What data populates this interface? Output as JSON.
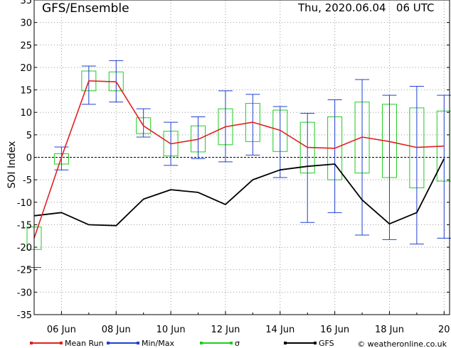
{
  "header": {
    "title": "GFS/Ensemble",
    "datetime": "Thu, 2020.06.04   06 UTC"
  },
  "footer": {
    "credit": "© weatheronline.co.uk"
  },
  "colors": {
    "mean": "#e02020",
    "minmax": "#2040d0",
    "sigma": "#20cc20",
    "gfs": "#000000",
    "grid": "#999999"
  },
  "chart_data": {
    "type": "line",
    "ylabel": "SOI Index",
    "ylim": [
      -35,
      35
    ],
    "yticks": [
      -35,
      -30,
      -25,
      -20,
      -15,
      -10,
      -5,
      0,
      5,
      10,
      15,
      20,
      25,
      30,
      35
    ],
    "xlim": [
      5.0,
      20.2
    ],
    "xticks": [
      {
        "day": 6,
        "label": "06  Jun"
      },
      {
        "day": 8,
        "label": "08  Jun"
      },
      {
        "day": 10,
        "label": "10  Jun"
      },
      {
        "day": 12,
        "label": "12  Jun"
      },
      {
        "day": 14,
        "label": "14  Jun"
      },
      {
        "day": 16,
        "label": "16  Jun"
      },
      {
        "day": 18,
        "label": "18  Jun"
      },
      {
        "day": 20,
        "label": "20"
      }
    ],
    "legend": {
      "position": "bottom",
      "entries": [
        {
          "key": "mean",
          "label": "Mean Run"
        },
        {
          "key": "minmax",
          "label": "Min/Max"
        },
        {
          "key": "sigma",
          "label": "σ"
        },
        {
          "key": "gfs",
          "label": "GFS"
        }
      ]
    },
    "x": [
      5,
      6,
      7,
      8,
      9,
      10,
      11,
      12,
      13,
      14,
      15,
      16,
      17,
      18,
      19,
      20
    ],
    "series": [
      {
        "name": "Mean Run",
        "key": "mean",
        "values": [
          -18,
          0,
          17,
          16.8,
          7,
          3,
          4,
          6.8,
          7.8,
          6,
          2.2,
          2,
          4.5,
          3.5,
          2.2,
          2.5
        ]
      },
      {
        "name": "GFS",
        "key": "gfs",
        "values": [
          -13,
          -12.3,
          -15,
          -15.2,
          -9.3,
          -7.2,
          -7.8,
          -10.5,
          -5,
          -2.8,
          -2,
          -1.5,
          -9.5,
          -14.8,
          -12.3,
          -0.3
        ]
      }
    ],
    "minmax": [
      {
        "x": 5,
        "min": -24.5,
        "max": -24.5
      },
      {
        "x": 6,
        "min": -2.8,
        "max": 2.3
      },
      {
        "x": 7,
        "min": 11.8,
        "max": 20.3
      },
      {
        "x": 8,
        "min": 12.3,
        "max": 21.5
      },
      {
        "x": 9,
        "min": 4.5,
        "max": 10.8
      },
      {
        "x": 10,
        "min": -1.8,
        "max": 7.8
      },
      {
        "x": 11,
        "min": -0.3,
        "max": 9.0
      },
      {
        "x": 12,
        "min": -1.0,
        "max": 14.8
      },
      {
        "x": 13,
        "min": 0.5,
        "max": 14.0
      },
      {
        "x": 14,
        "min": -4.5,
        "max": 11.3
      },
      {
        "x": 15,
        "min": -14.5,
        "max": 9.8
      },
      {
        "x": 16,
        "min": -12.3,
        "max": 12.8
      },
      {
        "x": 17,
        "min": -17.3,
        "max": 17.3
      },
      {
        "x": 18,
        "min": -18.3,
        "max": 13.8
      },
      {
        "x": 19,
        "min": -19.3,
        "max": 15.8
      },
      {
        "x": 20,
        "min": -18.0,
        "max": 13.8
      }
    ],
    "sigma": [
      {
        "x": 5,
        "low": -20.5,
        "high": -15.5
      },
      {
        "x": 6,
        "low": -1.5,
        "high": 0.8
      },
      {
        "x": 7,
        "low": 14.8,
        "high": 19.2
      },
      {
        "x": 8,
        "low": 14.8,
        "high": 19.0
      },
      {
        "x": 9,
        "low": 5.3,
        "high": 8.8
      },
      {
        "x": 10,
        "low": 0.3,
        "high": 5.8
      },
      {
        "x": 11,
        "low": 1.2,
        "high": 7.0
      },
      {
        "x": 12,
        "low": 2.8,
        "high": 10.8
      },
      {
        "x": 13,
        "low": 3.5,
        "high": 12.0
      },
      {
        "x": 14,
        "low": 1.3,
        "high": 10.5
      },
      {
        "x": 15,
        "low": -3.5,
        "high": 7.8
      },
      {
        "x": 16,
        "low": -5.0,
        "high": 9.0
      },
      {
        "x": 17,
        "low": -3.5,
        "high": 12.3
      },
      {
        "x": 18,
        "low": -4.5,
        "high": 11.8
      },
      {
        "x": 19,
        "low": -6.8,
        "high": 11.0
      },
      {
        "x": 20,
        "low": -5.3,
        "high": 10.3
      }
    ]
  }
}
